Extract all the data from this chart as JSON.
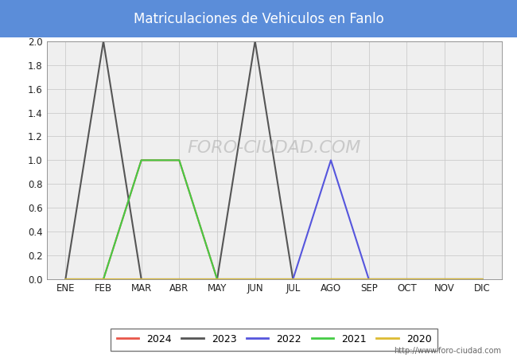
{
  "title": "Matriculaciones de Vehiculos en Fanlo",
  "title_bg_color": "#5b8dd9",
  "title_text_color": "#ffffff",
  "months": [
    "ENE",
    "FEB",
    "MAR",
    "ABR",
    "MAY",
    "JUN",
    "JUL",
    "AGO",
    "SEP",
    "OCT",
    "NOV",
    "DIC"
  ],
  "ylim": [
    0.0,
    2.0
  ],
  "yticks": [
    0.0,
    0.2,
    0.4,
    0.6,
    0.8,
    1.0,
    1.2,
    1.4,
    1.6,
    1.8,
    2.0
  ],
  "series": {
    "2024": {
      "color": "#e8564a",
      "data": [
        0,
        0,
        1,
        1,
        0,
        0,
        0,
        0,
        0,
        0,
        0,
        0
      ]
    },
    "2023": {
      "color": "#555555",
      "data": [
        0,
        2,
        0,
        0,
        0,
        2,
        0,
        0,
        0,
        0,
        0,
        0
      ]
    },
    "2022": {
      "color": "#5555dd",
      "data": [
        0,
        0,
        0,
        0,
        0,
        0,
        0,
        1,
        0,
        0,
        0,
        0
      ]
    },
    "2021": {
      "color": "#44cc44",
      "data": [
        0,
        0,
        1,
        1,
        0,
        0,
        0,
        0,
        0,
        0,
        0,
        0
      ]
    },
    "2020": {
      "color": "#ddbb33",
      "data": [
        0,
        0,
        0,
        0,
        0,
        0,
        0,
        0,
        0,
        0,
        0,
        0
      ]
    }
  },
  "legend_order": [
    "2024",
    "2023",
    "2022",
    "2021",
    "2020"
  ],
  "plot_bg_color": "#efefef",
  "grid_color": "#cccccc",
  "fig_bg_color": "#ffffff",
  "watermark": "FORO-CIUDAD.COM",
  "url": "http://www.foro-ciudad.com",
  "figsize": [
    6.5,
    4.5
  ],
  "dpi": 100
}
